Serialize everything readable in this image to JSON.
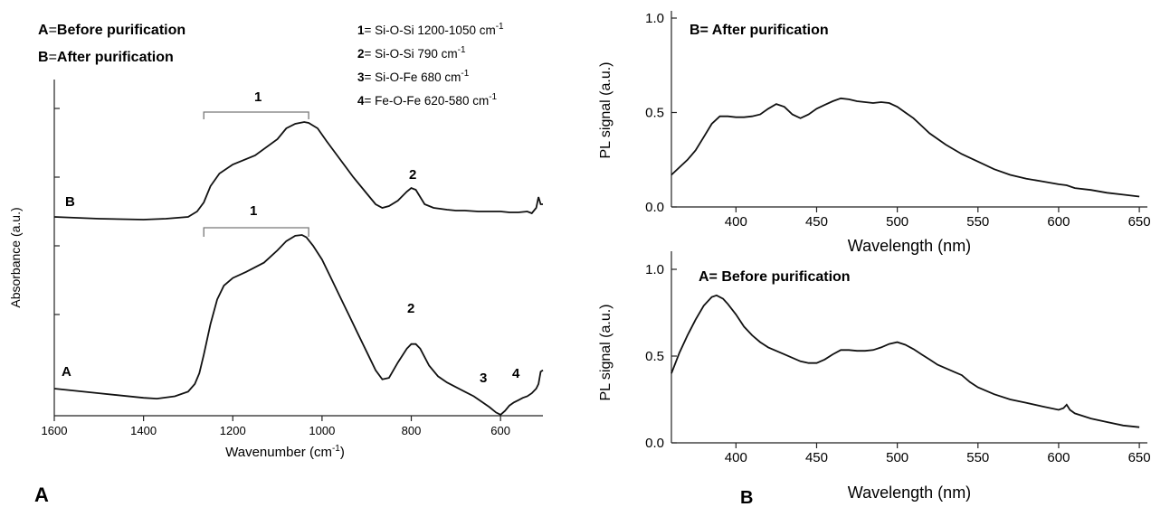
{
  "figure": {
    "panel_a_letter": "A",
    "panel_b_letter": "B"
  },
  "chart_data": [
    {
      "type": "line",
      "panel": "A",
      "xlabel": "Wavenumber (cm",
      "xlabel_sup": "-1",
      "xlabel_end": ")",
      "ylabel": "Absorbance (a.u.)",
      "xlim": [
        1600,
        505
      ],
      "x_reversed": true,
      "x_ticks": [
        1600,
        1400,
        1200,
        1000,
        800,
        600
      ],
      "y_ticks_unlabeled": 4,
      "legend_left": [
        {
          "key": "A",
          "eq": "=",
          "text": "Before purification"
        },
        {
          "key": "B",
          "eq": "=",
          "text": "After purification"
        }
      ],
      "band_legend": [
        {
          "num": "1",
          "text": "= Si-O-Si 1200-1050 cm",
          "sup": "-1"
        },
        {
          "num": "2",
          "text": "= Si-O-Si 790 cm",
          "sup": "-1"
        },
        {
          "num": "3",
          "text": "= Si-O-Fe 680 cm",
          "sup": "-1"
        },
        {
          "num": "4",
          "text": "= Fe-O-Fe 620-580 cm",
          "sup": "-1"
        }
      ],
      "curve_labels": {
        "B": "B",
        "A": "A"
      },
      "peak_labels": {
        "B1": "1",
        "B2": "2",
        "A1": "1",
        "A2": "2",
        "A3": "3",
        "A4": "4"
      },
      "brackets": [
        [
          1265,
          1030
        ]
      ],
      "series": [
        {
          "name": "B",
          "x": [
            1600,
            1500,
            1400,
            1350,
            1300,
            1280,
            1265,
            1250,
            1230,
            1200,
            1150,
            1100,
            1080,
            1060,
            1040,
            1030,
            1010,
            990,
            960,
            930,
            900,
            880,
            865,
            850,
            830,
            810,
            800,
            790,
            780,
            770,
            750,
            720,
            700,
            680,
            650,
            620,
            600,
            580,
            560,
            540,
            530,
            520,
            515,
            510,
            505
          ],
          "y": [
            0.0,
            -0.01,
            -0.015,
            -0.01,
            0.0,
            0.03,
            0.08,
            0.17,
            0.24,
            0.29,
            0.34,
            0.43,
            0.49,
            0.515,
            0.525,
            0.52,
            0.49,
            0.42,
            0.32,
            0.22,
            0.13,
            0.07,
            0.05,
            0.06,
            0.09,
            0.14,
            0.16,
            0.15,
            0.11,
            0.07,
            0.05,
            0.04,
            0.035,
            0.035,
            0.03,
            0.03,
            0.03,
            0.025,
            0.025,
            0.03,
            0.02,
            0.05,
            0.11,
            0.07,
            0.07
          ]
        },
        {
          "name": "A",
          "x": [
            1600,
            1500,
            1400,
            1370,
            1330,
            1300,
            1285,
            1275,
            1265,
            1250,
            1235,
            1220,
            1200,
            1170,
            1130,
            1100,
            1080,
            1060,
            1045,
            1035,
            1020,
            1000,
            980,
            960,
            940,
            920,
            900,
            880,
            865,
            850,
            830,
            810,
            800,
            790,
            780,
            760,
            740,
            720,
            700,
            680,
            660,
            640,
            625,
            610,
            600,
            590,
            580,
            570,
            560,
            550,
            540,
            530,
            520,
            515,
            510,
            505
          ],
          "y": [
            0.0,
            -0.03,
            -0.06,
            -0.065,
            -0.05,
            -0.02,
            0.03,
            0.1,
            0.22,
            0.42,
            0.58,
            0.67,
            0.72,
            0.76,
            0.82,
            0.9,
            0.96,
            0.995,
            1.0,
            0.985,
            0.93,
            0.84,
            0.72,
            0.6,
            0.48,
            0.36,
            0.24,
            0.12,
            0.06,
            0.07,
            0.17,
            0.26,
            0.29,
            0.29,
            0.26,
            0.15,
            0.08,
            0.04,
            0.01,
            -0.02,
            -0.05,
            -0.09,
            -0.12,
            -0.155,
            -0.17,
            -0.145,
            -0.11,
            -0.09,
            -0.075,
            -0.06,
            -0.05,
            -0.03,
            0.0,
            0.03,
            0.11,
            0.12
          ]
        }
      ]
    },
    {
      "type": "line",
      "panel": "B-top",
      "title": "B= After purification",
      "ylabel": "PL signal (a.u.)",
      "xlabel": "Wavelength (nm)",
      "xlim": [
        360,
        655
      ],
      "ylim": [
        0,
        1.0
      ],
      "x_ticks": [
        400,
        450,
        500,
        550,
        600,
        650
      ],
      "y_ticks": [
        0.0,
        0.5,
        1.0
      ],
      "y_tick_labels": [
        "0.0",
        "0.5",
        "1.0"
      ],
      "series": [
        {
          "name": "B",
          "x": [
            360,
            365,
            370,
            375,
            380,
            385,
            390,
            395,
            400,
            405,
            410,
            415,
            420,
            425,
            430,
            435,
            440,
            445,
            450,
            455,
            460,
            465,
            470,
            475,
            480,
            485,
            490,
            495,
            500,
            505,
            510,
            515,
            520,
            530,
            540,
            550,
            560,
            570,
            580,
            590,
            600,
            605,
            610,
            620,
            630,
            640,
            650
          ],
          "y": [
            0.17,
            0.21,
            0.25,
            0.3,
            0.37,
            0.44,
            0.48,
            0.48,
            0.475,
            0.475,
            0.48,
            0.49,
            0.52,
            0.545,
            0.53,
            0.49,
            0.47,
            0.49,
            0.52,
            0.54,
            0.56,
            0.575,
            0.57,
            0.56,
            0.555,
            0.55,
            0.555,
            0.55,
            0.53,
            0.5,
            0.47,
            0.43,
            0.39,
            0.33,
            0.28,
            0.24,
            0.2,
            0.17,
            0.15,
            0.135,
            0.12,
            0.115,
            0.1,
            0.09,
            0.075,
            0.065,
            0.055
          ]
        }
      ]
    },
    {
      "type": "line",
      "panel": "B-bottom",
      "title": "A= Before purification",
      "ylabel": "PL signal (a.u.)",
      "xlabel": "Wavelength (nm)",
      "xlim": [
        360,
        655
      ],
      "ylim": [
        0,
        1.0
      ],
      "x_ticks": [
        400,
        450,
        500,
        550,
        600,
        650
      ],
      "y_ticks": [
        0.0,
        0.5,
        1.0
      ],
      "y_tick_labels": [
        "0.0",
        "0.5",
        "1.0"
      ],
      "series": [
        {
          "name": "A",
          "x": [
            360,
            365,
            370,
            375,
            380,
            385,
            388,
            392,
            395,
            400,
            405,
            410,
            415,
            420,
            430,
            440,
            445,
            450,
            455,
            460,
            465,
            470,
            475,
            480,
            485,
            490,
            495,
            500,
            505,
            510,
            515,
            520,
            525,
            530,
            535,
            540,
            545,
            550,
            560,
            570,
            580,
            590,
            600,
            603,
            605,
            607,
            610,
            620,
            630,
            640,
            650
          ],
          "y": [
            0.4,
            0.52,
            0.62,
            0.71,
            0.79,
            0.84,
            0.85,
            0.83,
            0.8,
            0.74,
            0.67,
            0.62,
            0.58,
            0.55,
            0.51,
            0.47,
            0.46,
            0.46,
            0.48,
            0.51,
            0.535,
            0.535,
            0.53,
            0.53,
            0.535,
            0.55,
            0.57,
            0.58,
            0.565,
            0.54,
            0.51,
            0.48,
            0.45,
            0.43,
            0.41,
            0.39,
            0.35,
            0.32,
            0.28,
            0.25,
            0.23,
            0.21,
            0.19,
            0.2,
            0.22,
            0.19,
            0.17,
            0.14,
            0.12,
            0.1,
            0.09
          ]
        }
      ]
    }
  ]
}
